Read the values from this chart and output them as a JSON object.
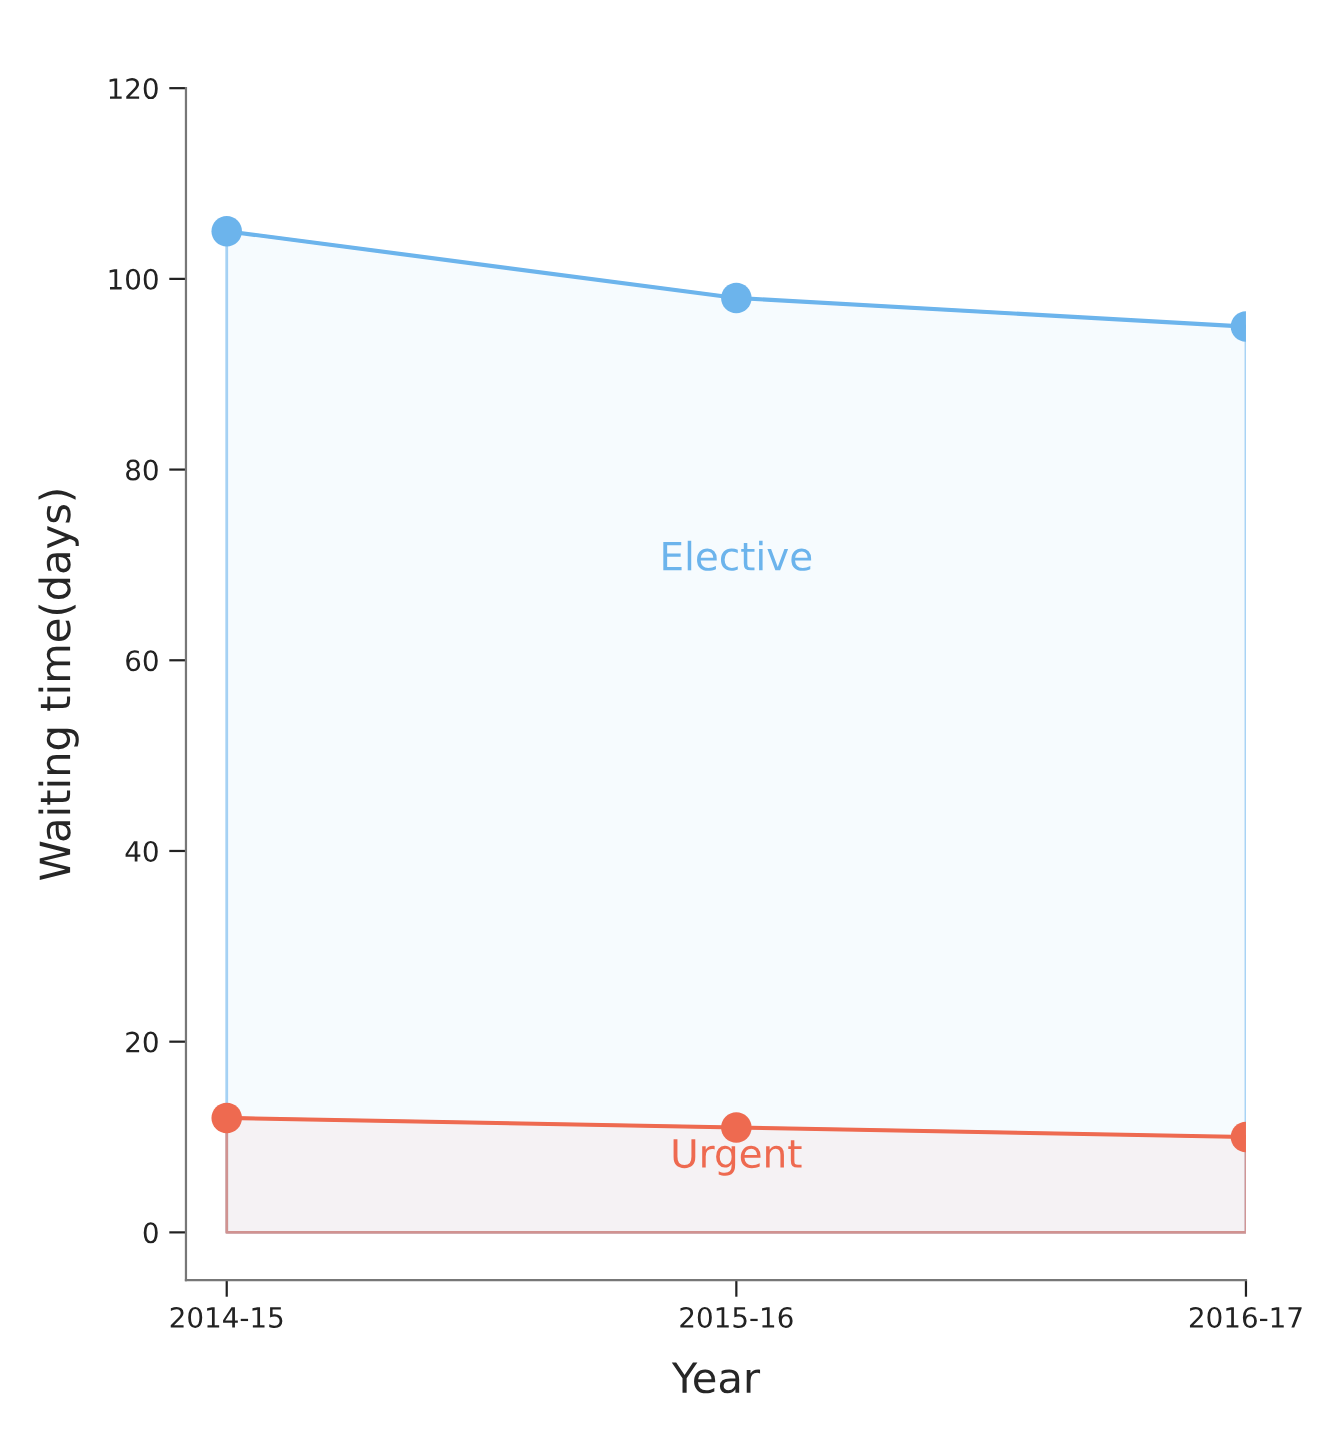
{
  "chart_data": {
    "type": "area",
    "xlabel": "Year",
    "ylabel": "Waiting time(days)",
    "categories": [
      "2014-15",
      "2015-16",
      "2016-17"
    ],
    "series": [
      {
        "name": "Elective",
        "color": "#6cb4ec",
        "values": [
          105,
          98,
          95
        ]
      },
      {
        "name": "Urgent",
        "color": "#ee6a50",
        "values": [
          12,
          11,
          10
        ]
      }
    ],
    "ylim": [
      -5,
      120
    ],
    "yticks": [
      0,
      20,
      40,
      60,
      80,
      100,
      120
    ],
    "marker": "circle",
    "line_style": "solid",
    "grid": false,
    "legend": false
  }
}
